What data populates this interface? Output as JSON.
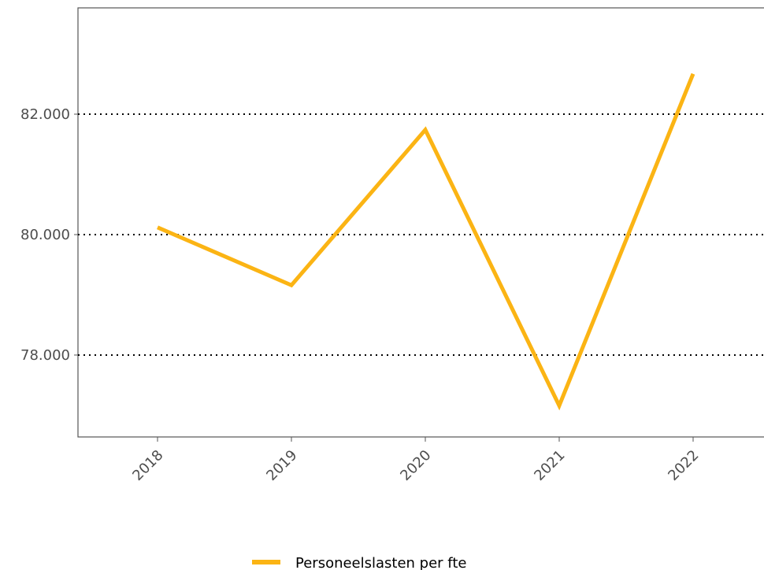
{
  "chart_data": {
    "type": "line",
    "categories": [
      "2018",
      "2019",
      "2020",
      "2021",
      "2022"
    ],
    "series": [
      {
        "name": "Personeelslasten per fte",
        "color": "#fbb414",
        "values": [
          80120,
          79160,
          81740,
          77160,
          82670
        ]
      }
    ],
    "ylim": [
      76640,
      83765
    ],
    "yticks": [
      {
        "value": 78000,
        "label": "78.000"
      },
      {
        "value": 80000,
        "label": "80.000"
      },
      {
        "value": 82000,
        "label": "82.000"
      }
    ],
    "grid": true,
    "legend": "bottom"
  }
}
